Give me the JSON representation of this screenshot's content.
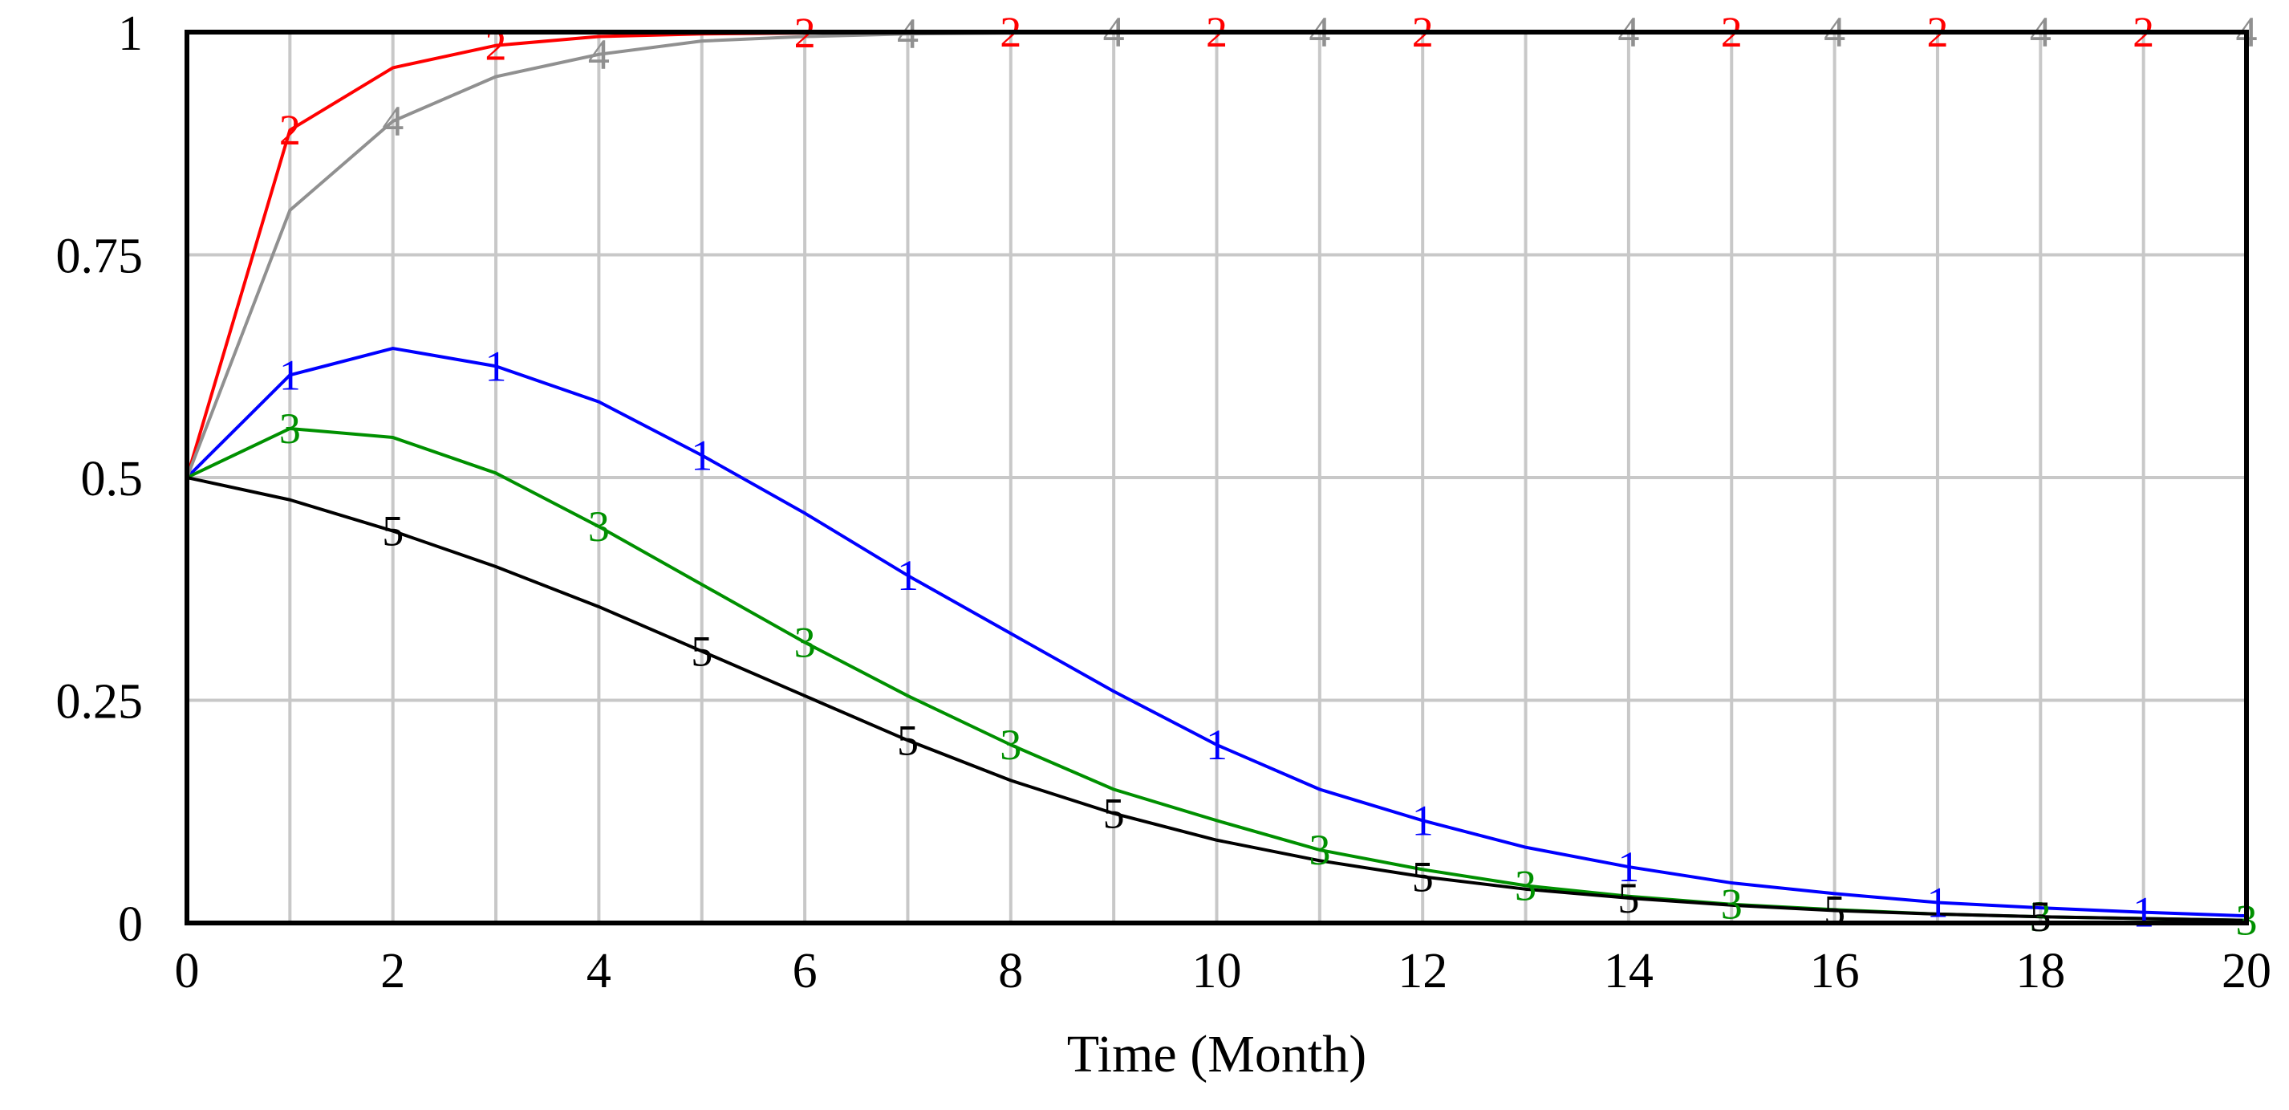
{
  "chart_data": {
    "type": "line",
    "title": "",
    "xlabel": "Time (Month)",
    "ylabel": "",
    "xlim": [
      0,
      20
    ],
    "ylim": [
      0,
      1
    ],
    "grid": true,
    "legend": "none",
    "x_ticks": [
      0,
      2,
      4,
      6,
      8,
      10,
      12,
      14,
      16,
      18,
      20
    ],
    "x_tick_labels": [
      "0",
      "2",
      "4",
      "6",
      "8",
      "10",
      "12",
      "14",
      "16",
      "18",
      "20"
    ],
    "y_ticks": [
      0,
      0.25,
      0.5,
      0.75,
      1
    ],
    "y_tick_labels": [
      "0",
      "0.25",
      "0.5",
      "0.75",
      "1"
    ],
    "x": [
      0,
      1,
      2,
      3,
      4,
      5,
      6,
      7,
      8,
      9,
      10,
      11,
      12,
      13,
      14,
      15,
      16,
      17,
      18,
      19,
      20
    ],
    "series": [
      {
        "marker": "1",
        "color": "#0000ff",
        "values": [
          0.5,
          0.615,
          0.645,
          0.625,
          0.585,
          0.525,
          0.46,
          0.39,
          0.325,
          0.26,
          0.2,
          0.15,
          0.115,
          0.085,
          0.063,
          0.045,
          0.033,
          0.023,
          0.017,
          0.012,
          0.008
        ],
        "marker_x": [
          1,
          3,
          5,
          7,
          10,
          12,
          14,
          17,
          19
        ]
      },
      {
        "marker": "2",
        "color": "#ff0000",
        "values": [
          0.5,
          0.89,
          0.96,
          0.985,
          0.995,
          0.998,
          0.999,
          1,
          1,
          1,
          1,
          1,
          1,
          1,
          1,
          1,
          1,
          1,
          1,
          1,
          1
        ],
        "marker_x": [
          1,
          3,
          6,
          8,
          10,
          12,
          15,
          17,
          19
        ]
      },
      {
        "marker": "3",
        "color": "#009000",
        "values": [
          0.5,
          0.555,
          0.545,
          0.505,
          0.445,
          0.38,
          0.315,
          0.255,
          0.2,
          0.15,
          0.115,
          0.082,
          0.06,
          0.042,
          0.03,
          0.021,
          0.015,
          0.01,
          0.007,
          0.005,
          0.003
        ],
        "marker_x": [
          1,
          4,
          6,
          8,
          11,
          13,
          15,
          18,
          20
        ]
      },
      {
        "marker": "4",
        "color": "#909090",
        "values": [
          0.5,
          0.8,
          0.9,
          0.95,
          0.975,
          0.99,
          0.995,
          0.998,
          0.999,
          1,
          1,
          1,
          1,
          1,
          1,
          1,
          1,
          1,
          1,
          1,
          1
        ],
        "marker_x": [
          2,
          4,
          7,
          9,
          11,
          14,
          16,
          18,
          20
        ]
      },
      {
        "marker": "5",
        "color": "#000000",
        "values": [
          0.5,
          0.475,
          0.44,
          0.4,
          0.355,
          0.305,
          0.255,
          0.205,
          0.16,
          0.123,
          0.093,
          0.07,
          0.052,
          0.038,
          0.028,
          0.02,
          0.014,
          0.01,
          0.007,
          0.005,
          0.003
        ],
        "marker_x": [
          2,
          5,
          7,
          9,
          12,
          14,
          16,
          18
        ]
      }
    ]
  }
}
